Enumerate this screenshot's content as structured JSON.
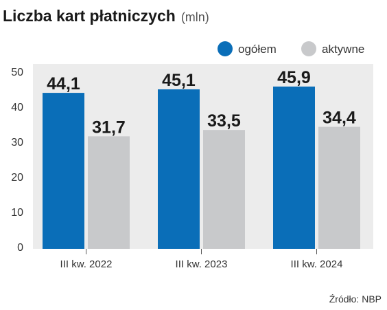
{
  "chart_data": {
    "type": "bar",
    "title": "Liczba kart płatniczych",
    "unit": "(mln)",
    "categories": [
      "III kw. 2022",
      "III kw. 2023",
      "III kw. 2024"
    ],
    "series": [
      {
        "name": "ogółem",
        "values": [
          44.1,
          45.1,
          45.9
        ],
        "labels": [
          "44,1",
          "45,1",
          "45,9"
        ],
        "color": "#0a6eb8"
      },
      {
        "name": "aktywne",
        "values": [
          31.7,
          33.5,
          34.4
        ],
        "labels": [
          "31,7",
          "33,5",
          "34,4"
        ],
        "color": "#c8c9cb"
      }
    ],
    "ylim": [
      0,
      50
    ],
    "yticks": [
      "0",
      "10",
      "20",
      "30",
      "40",
      "50"
    ],
    "grid": false,
    "legend_position": "top-right",
    "plot_background": "#ececec",
    "source": "Źródło: NBP"
  }
}
